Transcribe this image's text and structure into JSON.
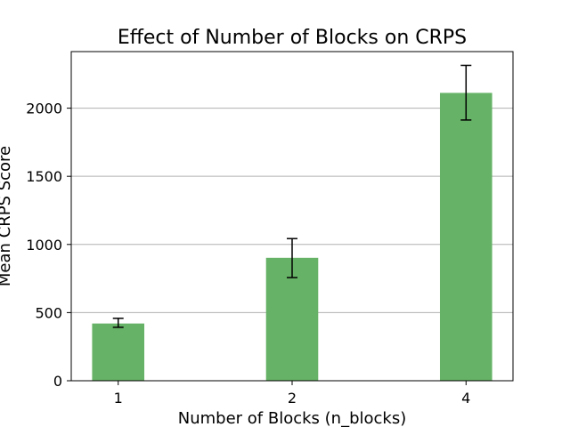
{
  "chart_data": {
    "type": "bar",
    "title": "Effect of Number of Blocks on CRPS",
    "xlabel": "Number of Blocks (n_blocks)",
    "ylabel": "Mean CRPS Score",
    "categories": [
      "1",
      "2",
      "4"
    ],
    "values": [
      420,
      902,
      2112
    ],
    "error_low": [
      392,
      757,
      1913
    ],
    "error_high": [
      458,
      1043,
      2314
    ],
    "ylim": [
      0,
      2415
    ],
    "yticks": [
      0,
      500,
      1000,
      1500,
      2000
    ],
    "grid": "y",
    "legend": "none",
    "bar_color": "#66b266",
    "error_color": "#000000",
    "grid_color": "#b0b0b0"
  }
}
